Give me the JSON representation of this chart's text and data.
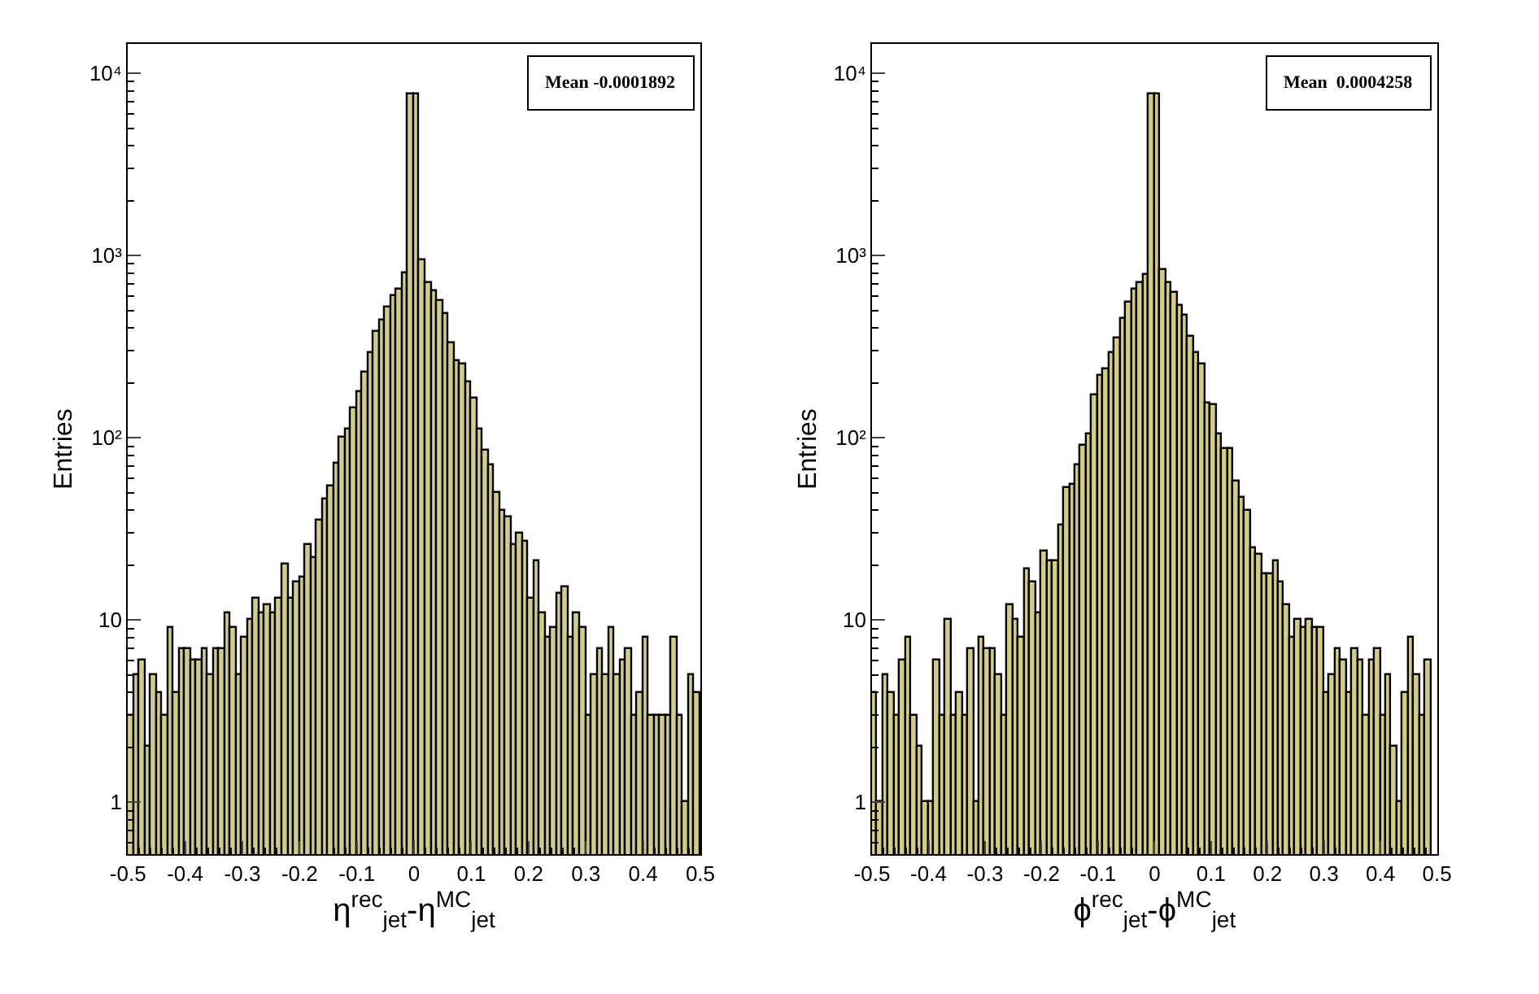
{
  "chart_data": [
    {
      "type": "histogram",
      "xlabel": "η$^{rec}$$_{jet}$-η$^{MC}$$_{jet}$",
      "ylabel": "Entries",
      "color": "#d2cc88",
      "log": "y",
      "bins": [
        -0.5,
        -0.49,
        -0.48,
        -0.47,
        -0.46,
        -0.45,
        -0.44,
        -0.43,
        -0.42,
        -0.41,
        -0.4,
        -0.39,
        -0.38,
        -0.37,
        -0.36,
        -0.35,
        -0.34,
        -0.33,
        -0.32,
        -0.31,
        -0.3,
        -0.29,
        -0.28,
        -0.27,
        -0.26,
        -0.25,
        -0.24,
        -0.23,
        -0.22,
        -0.21,
        -0.2,
        -0.19,
        -0.18,
        -0.17,
        -0.16,
        -0.15,
        -0.14,
        -0.13,
        -0.12,
        -0.11,
        -0.1,
        -0.09,
        -0.08,
        -0.07,
        -0.06,
        -0.05,
        -0.04,
        -0.03,
        -0.02,
        -0.01,
        0,
        0.01,
        0.02,
        0.03,
        0.04,
        0.05,
        0.06,
        0.07,
        0.08,
        0.09,
        0.1,
        0.11,
        0.12,
        0.13,
        0.14,
        0.15,
        0.16,
        0.17,
        0.18,
        0.19,
        0.2,
        0.21,
        0.22,
        0.23,
        0.24,
        0.25,
        0.26,
        0.27,
        0.28,
        0.29,
        0.3,
        0.31,
        0.32,
        0.33,
        0.34,
        0.35,
        0.36,
        0.37,
        0.38,
        0.39,
        0.4,
        0.41,
        0.42,
        0.43,
        0.44,
        0.45,
        0.46,
        0.47,
        0.48,
        0.49,
        0.5
      ],
      "values": [
        3,
        5,
        6,
        2,
        5,
        4,
        3,
        9,
        4,
        7,
        7,
        6,
        6,
        7,
        5,
        7,
        7,
        11,
        9,
        5,
        8,
        10,
        13,
        11,
        12,
        11,
        13,
        20,
        13,
        16,
        17,
        26,
        22,
        35,
        46,
        54,
        72,
        100,
        110,
        145,
        180,
        230,
        290,
        380,
        440,
        520,
        600,
        650,
        800,
        7600,
        7600,
        940,
        710,
        640,
        560,
        480,
        330,
        265,
        255,
        200,
        165,
        110,
        85,
        70,
        50,
        40,
        37,
        26,
        30,
        27,
        13,
        21,
        11,
        8,
        9,
        14,
        15,
        8,
        11,
        9,
        3,
        5,
        7,
        5,
        9,
        5,
        6,
        7,
        3,
        4,
        8,
        3,
        3,
        3,
        3,
        8,
        3,
        1,
        5,
        4
      ],
      "xlim": [
        -0.5,
        0.5
      ],
      "xticks": [
        -0.5,
        -0.4,
        -0.3,
        -0.2,
        -0.1,
        0,
        0.1,
        0.2,
        0.3,
        0.4,
        0.5
      ],
      "ylim": [
        0.52,
        14500
      ],
      "yticks": [
        {
          "value": 1,
          "label": "1"
        },
        {
          "value": 10,
          "label": "10"
        },
        {
          "value": 100,
          "label": "10²"
        },
        {
          "value": 1000,
          "label": "10³"
        },
        {
          "value": 10000,
          "label": "10⁴"
        }
      ],
      "annotations": [
        "Mean -0.0001892"
      ]
    },
    {
      "type": "histogram",
      "xlabel": "ϕ$^{rec}$$_{jet}$-ϕ$^{MC}$$_{jet}$",
      "ylabel": "Entries",
      "color": "#d2cc88",
      "log": "y",
      "bins": [
        -0.5,
        -0.49,
        -0.48,
        -0.47,
        -0.46,
        -0.45,
        -0.44,
        -0.43,
        -0.42,
        -0.41,
        -0.4,
        -0.39,
        -0.38,
        -0.37,
        -0.36,
        -0.35,
        -0.34,
        -0.33,
        -0.32,
        -0.31,
        -0.3,
        -0.29,
        -0.28,
        -0.27,
        -0.26,
        -0.25,
        -0.24,
        -0.23,
        -0.22,
        -0.21,
        -0.2,
        -0.19,
        -0.18,
        -0.17,
        -0.16,
        -0.15,
        -0.14,
        -0.13,
        -0.12,
        -0.11,
        -0.1,
        -0.09,
        -0.08,
        -0.07,
        -0.06,
        -0.05,
        -0.04,
        -0.03,
        -0.02,
        -0.01,
        0,
        0.01,
        0.02,
        0.03,
        0.04,
        0.05,
        0.06,
        0.07,
        0.08,
        0.09,
        0.1,
        0.11,
        0.12,
        0.13,
        0.14,
        0.15,
        0.16,
        0.17,
        0.18,
        0.19,
        0.2,
        0.21,
        0.22,
        0.23,
        0.24,
        0.25,
        0.26,
        0.27,
        0.28,
        0.29,
        0.3,
        0.31,
        0.32,
        0.33,
        0.34,
        0.35,
        0.36,
        0.37,
        0.38,
        0.39,
        0.4,
        0.41,
        0.42,
        0.43,
        0.44,
        0.45,
        0.46,
        0.47,
        0.48,
        0.49,
        0.5
      ],
      "values": [
        4,
        1,
        5,
        4,
        3,
        6,
        8,
        3,
        2,
        1,
        1,
        6,
        3,
        10,
        3,
        4,
        3,
        7,
        1,
        8,
        7,
        7,
        5,
        3,
        12,
        10,
        8,
        19,
        16,
        11,
        24,
        21,
        21,
        33,
        53,
        55,
        70,
        90,
        105,
        170,
        220,
        240,
        290,
        350,
        450,
        550,
        650,
        700,
        780,
        7700,
        7700,
        840,
        700,
        630,
        530,
        470,
        360,
        290,
        255,
        155,
        150,
        105,
        87,
        87,
        57,
        47,
        40,
        25,
        23,
        18,
        18,
        21,
        16,
        12,
        8,
        10,
        9,
        10,
        9,
        9,
        4,
        5,
        7,
        6,
        4,
        7,
        6,
        3,
        6,
        7,
        3,
        5,
        2,
        1,
        4,
        8,
        5,
        3,
        6,
        null
      ],
      "xlim": [
        -0.5,
        0.5
      ],
      "xticks": [
        -0.5,
        -0.4,
        -0.3,
        -0.2,
        -0.1,
        0,
        0.1,
        0.2,
        0.3,
        0.4,
        0.5
      ],
      "ylim": [
        0.52,
        14500
      ],
      "yticks": [
        {
          "value": 1,
          "label": "1"
        },
        {
          "value": 10,
          "label": "10"
        },
        {
          "value": 100,
          "label": "10²"
        },
        {
          "value": 1000,
          "label": "10³"
        },
        {
          "value": 10000,
          "label": "10⁴"
        }
      ],
      "annotations": [
        "Mean  0.0004258"
      ]
    }
  ]
}
